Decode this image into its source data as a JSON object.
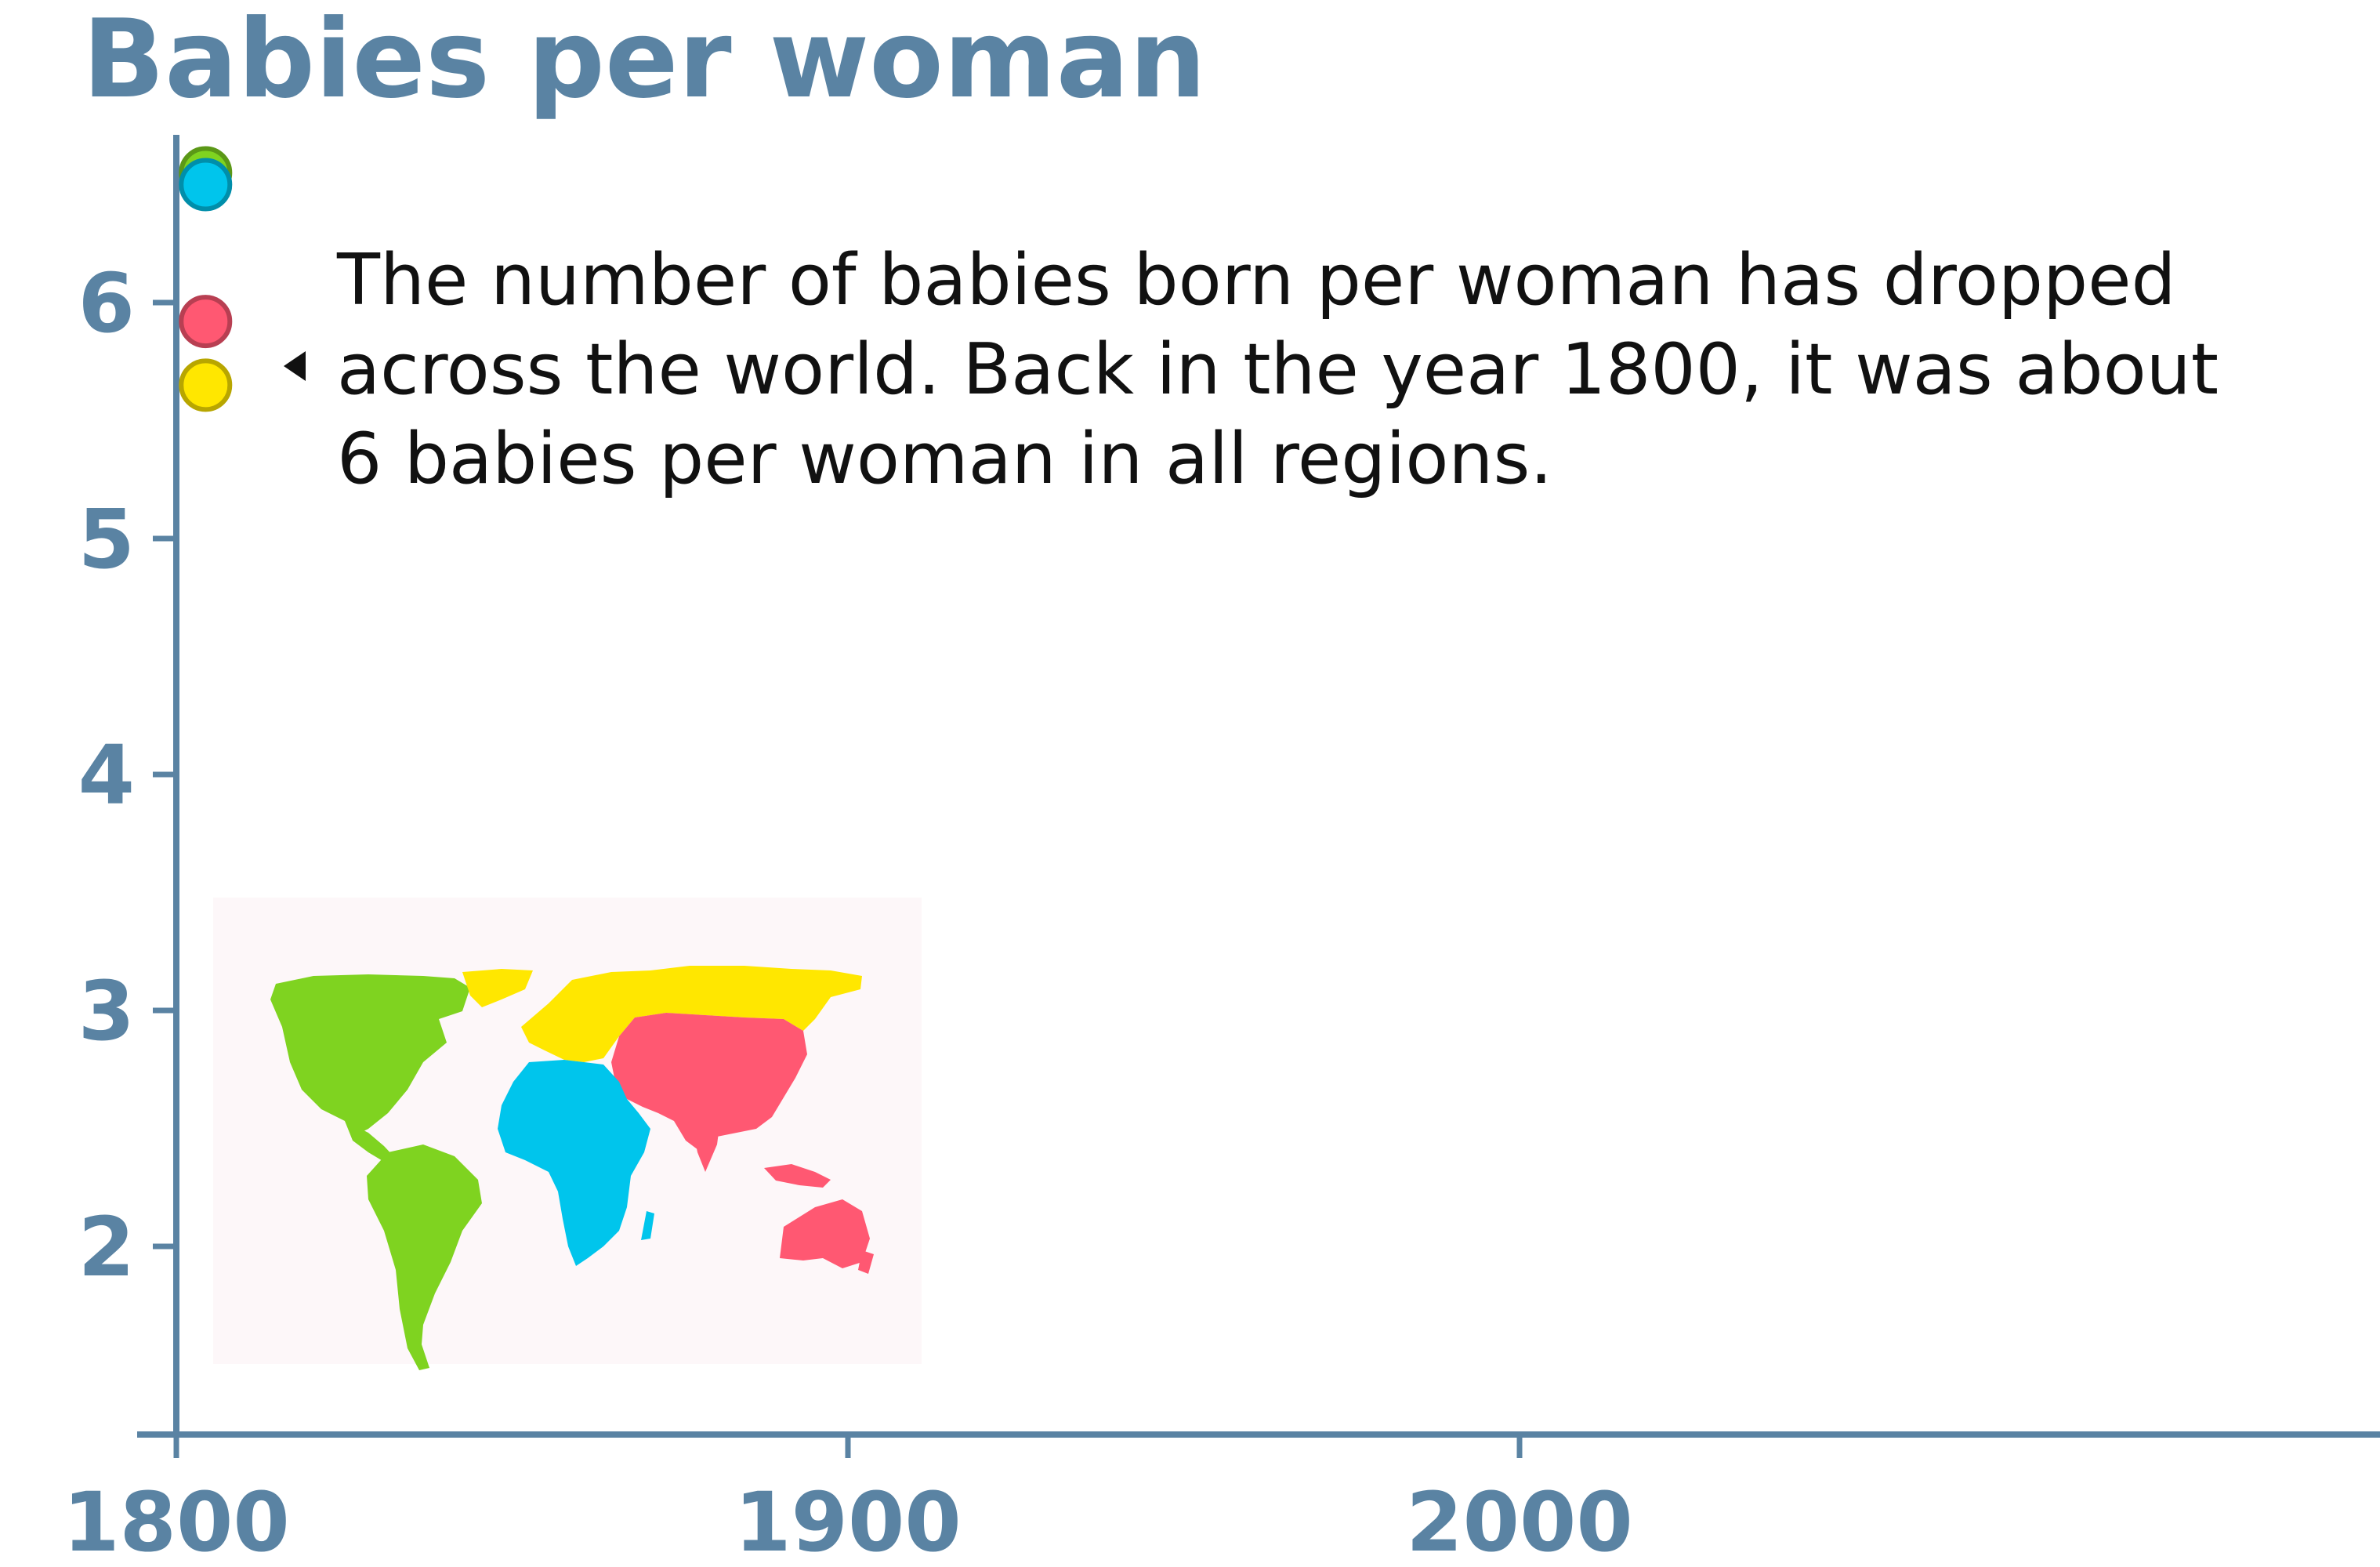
{
  "chart_data": {
    "type": "scatter",
    "title": "Babies per woman",
    "xlabel": "",
    "ylabel": "",
    "xlim": [
      1800,
      2130
    ],
    "ylim": [
      1.2,
      6.7
    ],
    "x_ticks": [
      "1800",
      "1900",
      "2000"
    ],
    "y_ticks": [
      "2",
      "3",
      "4",
      "5",
      "6"
    ],
    "series": [
      {
        "region": "americas",
        "color": "#7fd320",
        "x": 1804,
        "y": 6.55
      },
      {
        "region": "africa",
        "color": "#00c5ec",
        "x": 1804,
        "y": 6.5
      },
      {
        "region": "asia",
        "color": "#ff5872",
        "x": 1804,
        "y": 5.92
      },
      {
        "region": "europe",
        "color": "#ffe700",
        "x": 1804,
        "y": 5.65
      }
    ],
    "annotation": {
      "lines": [
        "The number of babies born per woman has dropped",
        "across the world. Back in the year 1800, it was about",
        "6 babies per woman in all regions."
      ]
    },
    "grid": false,
    "legend": "world-map bottom-left",
    "colors": {
      "axis": "#5a83a3",
      "text": "#111111"
    }
  }
}
